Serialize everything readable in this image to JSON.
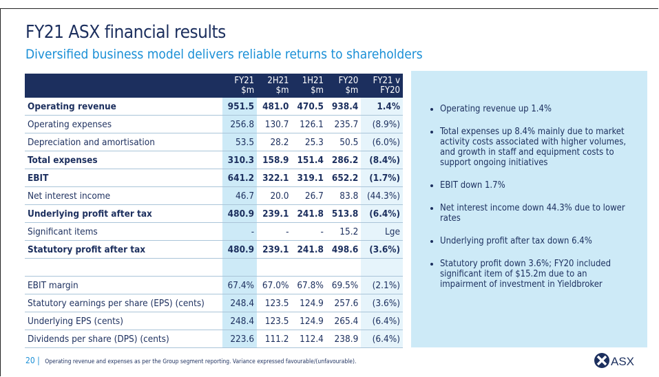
{
  "header": {
    "title": "FY21 ASX financial results",
    "subtitle": "Diversified business model delivers reliable returns to shareholders"
  },
  "table": {
    "headers": [
      [
        "FY21",
        "$m"
      ],
      [
        "2H21",
        "$m"
      ],
      [
        "1H21",
        "$m"
      ],
      [
        "FY20",
        "$m"
      ],
      [
        "FY21 v",
        "FY20"
      ]
    ],
    "rows": [
      [
        "Operating revenue",
        "951.5",
        "481.0",
        "470.5",
        "938.4",
        "1.4%"
      ],
      [
        "Operating expenses",
        "256.8",
        "130.7",
        "126.1",
        "235.7",
        "(8.9%)"
      ],
      [
        "Depreciation and amortisation",
        "53.5",
        "28.2",
        "25.3",
        "50.5",
        "(6.0%)"
      ],
      [
        "Total expenses",
        "310.3",
        "158.9",
        "151.4",
        "286.2",
        "(8.4%)"
      ],
      [
        "EBIT",
        "641.2",
        "322.1",
        "319.1",
        "652.2",
        "(1.7%)"
      ],
      [
        "Net interest income",
        "46.7",
        "20.0",
        "26.7",
        "83.8",
        "(44.3%)"
      ],
      [
        "Underlying profit after tax",
        "480.9",
        "239.1",
        "241.8",
        "513.8",
        "(6.4%)"
      ],
      [
        "Significant items",
        "-",
        "-",
        "-",
        "15.2",
        "Lge"
      ],
      [
        "Statutory profit after tax",
        "480.9",
        "239.1",
        "241.8",
        "498.6",
        "(3.6%)"
      ],
      [
        "EBIT margin",
        "67.4%",
        "67.0%",
        "67.8%",
        "69.5%",
        "(2.1%)"
      ],
      [
        "Statutory earnings per share (EPS) (cents)",
        "248.4",
        "123.5",
        "124.9",
        "257.6",
        "(3.6%)"
      ],
      [
        "Underlying EPS (cents)",
        "248.4",
        "123.5",
        "124.9",
        "265.4",
        "(6.4%)"
      ],
      [
        "Dividends per share (DPS) (cents)",
        "223.6",
        "111.2",
        "112.4",
        "238.9",
        "(6.4%)"
      ]
    ]
  },
  "bullets": [
    "Operating revenue up 1.4%",
    "Total expenses up 8.4% mainly due to market activity costs associated with higher volumes, and growth in staff and equipment costs to support ongoing initiatives",
    "EBIT down 1.7%",
    "Net interest income down 44.3% due to lower rates",
    "Underlying profit after tax down 6.4%",
    "Statutory profit down 3.6%; FY20 included significant item of $15.2m due to an impairment of investment in Yieldbroker"
  ],
  "footer": {
    "page": "20",
    "note": "Operating revenue and expenses as per the Group segment reporting. Variance expressed favourable/(unfavourable)."
  },
  "logo": {
    "text": "ASX"
  }
}
